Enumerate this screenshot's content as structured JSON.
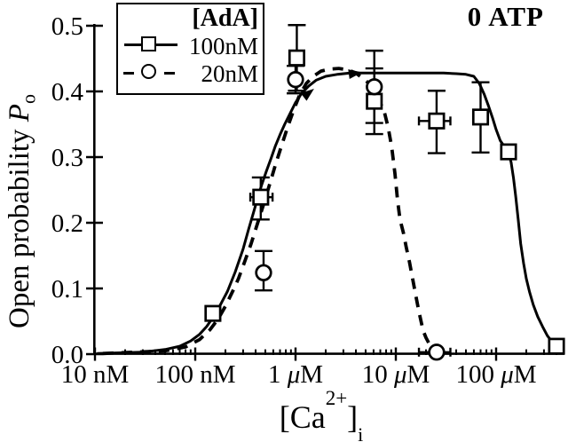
{
  "figure": {
    "background": "#ffffff",
    "ink": "#000000"
  },
  "legend": {
    "title": "[AdA]",
    "entries": [
      {
        "label": "100nM",
        "marker": "square",
        "line": "solid"
      },
      {
        "label": "20nM",
        "marker": "circle",
        "line": "dashed"
      }
    ]
  },
  "chart_data": {
    "type": "line",
    "annotation": "0 ATP",
    "x_axis": {
      "title_pre": "[Ca",
      "title_sup": "2+",
      "title_close": "]",
      "title_sub": "i",
      "scale": "log",
      "range_uM": [
        0.01,
        460
      ],
      "major_ticks": [
        {
          "c": 0.01,
          "label": "10 nM"
        },
        {
          "c": 0.1,
          "label": "100 nM"
        },
        {
          "c": 1,
          "label": "1 μM"
        },
        {
          "c": 10,
          "label": "10 μM"
        },
        {
          "c": 100,
          "label": "100 μM"
        }
      ]
    },
    "y_axis": {
      "label_text": "Open probability",
      "label_symbol": "P",
      "label_sub": "o",
      "range": [
        0,
        0.5
      ],
      "tick_values": [
        0,
        0.1,
        0.2,
        0.3,
        0.4,
        0.5
      ],
      "tick_labels": [
        "0.0",
        "0.1",
        "0.2",
        "0.3",
        "0.4",
        "0.5"
      ]
    },
    "series": [
      {
        "name": "100nM",
        "marker": "square",
        "line": "solid",
        "curve": [
          [
            0.0105,
            0.001
          ],
          [
            0.03,
            0.003
          ],
          [
            0.05,
            0.007
          ],
          [
            0.07,
            0.012
          ],
          [
            0.09,
            0.02
          ],
          [
            0.11,
            0.03
          ],
          [
            0.13,
            0.042
          ],
          [
            0.15,
            0.056
          ],
          [
            0.175,
            0.073
          ],
          [
            0.21,
            0.096
          ],
          [
            0.25,
            0.125
          ],
          [
            0.3,
            0.16
          ],
          [
            0.34,
            0.19
          ],
          [
            0.38,
            0.215
          ],
          [
            0.42,
            0.238
          ],
          [
            0.46,
            0.258
          ],
          [
            0.51,
            0.278
          ],
          [
            0.57,
            0.298
          ],
          [
            0.63,
            0.317
          ],
          [
            0.7,
            0.334
          ],
          [
            0.78,
            0.35
          ],
          [
            0.88,
            0.366
          ],
          [
            1.0,
            0.383
          ],
          [
            1.15,
            0.397
          ],
          [
            1.35,
            0.408
          ],
          [
            1.6,
            0.417
          ],
          [
            2.0,
            0.423
          ],
          [
            2.6,
            0.426
          ],
          [
            3.5,
            0.428
          ],
          [
            5,
            0.428
          ],
          [
            8,
            0.428
          ],
          [
            13,
            0.428
          ],
          [
            20,
            0.428
          ],
          [
            30,
            0.428
          ],
          [
            40,
            0.427
          ],
          [
            50,
            0.426
          ],
          [
            60,
            0.423
          ],
          [
            68,
            0.412
          ],
          [
            76,
            0.396
          ],
          [
            84,
            0.378
          ],
          [
            92,
            0.36
          ],
          [
            100,
            0.342
          ],
          [
            110,
            0.325
          ],
          [
            121,
            0.316
          ],
          [
            133,
            0.307
          ],
          [
            141,
            0.292
          ],
          [
            149,
            0.268
          ],
          [
            157,
            0.24
          ],
          [
            166,
            0.205
          ],
          [
            176,
            0.168
          ],
          [
            188,
            0.138
          ],
          [
            200,
            0.115
          ],
          [
            215,
            0.095
          ],
          [
            235,
            0.075
          ],
          [
            260,
            0.057
          ],
          [
            290,
            0.042
          ],
          [
            325,
            0.028
          ],
          [
            365,
            0.018
          ],
          [
            400,
            0.012
          ],
          [
            440,
            0.008
          ],
          [
            470,
            0.005
          ]
        ],
        "points": [
          {
            "c": 0.15,
            "P": 0.062
          },
          {
            "c": 0.45,
            "P": 0.239,
            "ylo": 0.205,
            "yhi": 0.269,
            "xlo": 0.354,
            "xhi": 0.59
          },
          {
            "c": 1.03,
            "P": 0.451,
            "ylo": 0.401,
            "yhi": 0.501
          },
          {
            "c": 6.1,
            "P": 0.385,
            "ylo": 0.335,
            "yhi": 0.435
          },
          {
            "c": 25.5,
            "P": 0.355,
            "ylo": 0.306,
            "yhi": 0.401,
            "xlo": 17,
            "xhi": 35
          },
          {
            "c": 70,
            "P": 0.361,
            "ylo": 0.307,
            "yhi": 0.414
          },
          {
            "c": 133,
            "P": 0.308
          },
          {
            "c": 400,
            "P": 0.012
          }
        ]
      },
      {
        "name": "20nM",
        "marker": "circle",
        "line": "dashed",
        "curve": [
          [
            0.012,
            0.001
          ],
          [
            0.05,
            0.005
          ],
          [
            0.08,
            0.011
          ],
          [
            0.11,
            0.022
          ],
          [
            0.14,
            0.037
          ],
          [
            0.17,
            0.054
          ],
          [
            0.2,
            0.073
          ],
          [
            0.24,
            0.098
          ],
          [
            0.27,
            0.115
          ],
          [
            0.31,
            0.14
          ],
          [
            0.36,
            0.168
          ],
          [
            0.42,
            0.2
          ],
          [
            0.48,
            0.228
          ],
          [
            0.55,
            0.258
          ],
          [
            0.63,
            0.288
          ],
          [
            0.72,
            0.316
          ],
          [
            0.83,
            0.345
          ],
          [
            0.96,
            0.372
          ],
          [
            1.1,
            0.395
          ],
          [
            1.28,
            0.412
          ],
          [
            1.5,
            0.423
          ],
          [
            1.8,
            0.431
          ],
          [
            2.2,
            0.434
          ],
          [
            2.7,
            0.435
          ],
          [
            3.3,
            0.433
          ],
          [
            4.0,
            0.428
          ],
          [
            4.7,
            0.42
          ],
          [
            5.4,
            0.412
          ],
          [
            6.1,
            0.4
          ],
          [
            6.9,
            0.385
          ],
          [
            7.7,
            0.368
          ],
          [
            8.4,
            0.345
          ],
          [
            9.1,
            0.315
          ],
          [
            9.8,
            0.275
          ],
          [
            10.4,
            0.235
          ],
          [
            11.0,
            0.205
          ],
          [
            11.9,
            0.185
          ],
          [
            12.7,
            0.163
          ],
          [
            13.7,
            0.14
          ],
          [
            14.7,
            0.115
          ],
          [
            15.7,
            0.092
          ],
          [
            17.0,
            0.065
          ],
          [
            18.7,
            0.036
          ],
          [
            20.0,
            0.025
          ],
          [
            22.5,
            0.01
          ],
          [
            25,
            0.004
          ],
          [
            28,
            0.002
          ],
          [
            32,
            0.001
          ]
        ],
        "points": [
          {
            "c": 0.48,
            "P": 0.124,
            "ylo": 0.097,
            "yhi": 0.157
          },
          {
            "c": 1.0,
            "P": 0.418,
            "ylo": 0.397,
            "yhi": 0.439
          },
          {
            "c": 6.1,
            "P": 0.407,
            "ylo": 0.352,
            "yhi": 0.462
          },
          {
            "c": 25.5,
            "P": 0.003,
            "xlo": 17,
            "xhi": 35
          }
        ]
      }
    ],
    "arrows": [
      {
        "c": 1.53,
        "P": 0.404,
        "angle": -38
      },
      {
        "c": 4.6,
        "P": 0.429,
        "angle": -8
      }
    ]
  }
}
